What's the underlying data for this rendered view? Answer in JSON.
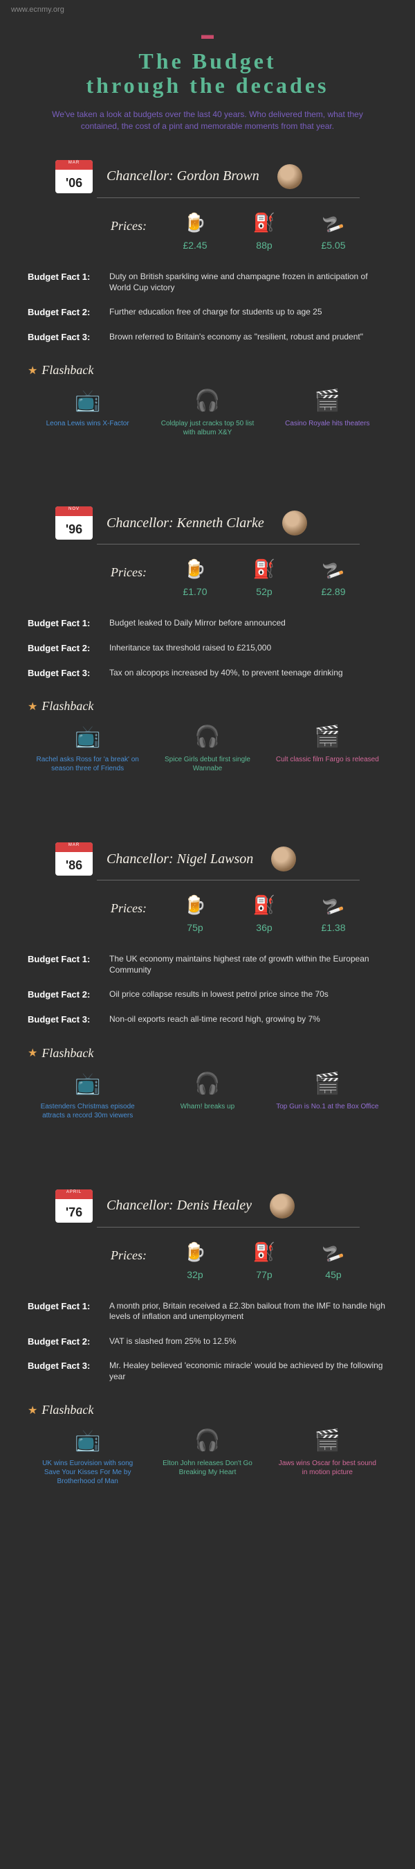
{
  "site_url": "www.ecnmy.org",
  "title_line1": "The Budget",
  "title_line2": "through the decades",
  "intro": "We've taken a look at budgets over the last 40 years. Who delivered them, what they contained, the cost of a pint and memorable moments from that year.",
  "prices_label": "Prices:",
  "flashback_label": "Flashback",
  "fact_label_prefix": "Budget Fact",
  "decades": [
    {
      "month": "MAR",
      "year": "'06",
      "chancellor": "Chancellor: Gordon Brown",
      "prices": {
        "beer": "£2.45",
        "fuel": "88p",
        "cig": "£5.05"
      },
      "facts": [
        "Duty on British sparkling wine and champagne frozen in anticipation of World Cup victory",
        "Further education free of charge for students up to age 25",
        "Brown referred to Britain's economy as \"resilient, robust and prudent\""
      ],
      "flashback": [
        {
          "type": "tv",
          "color": "blue",
          "text": "Leona Lewis wins X-Factor"
        },
        {
          "type": "music",
          "color": "teal",
          "text": "Coldplay just cracks top 50 list with album X&Y"
        },
        {
          "type": "film",
          "color": "purple",
          "text": "Casino Royale hits theaters"
        }
      ]
    },
    {
      "month": "NOV",
      "year": "'96",
      "chancellor": "Chancellor: Kenneth Clarke",
      "prices": {
        "beer": "£1.70",
        "fuel": "52p",
        "cig": "£2.89"
      },
      "facts": [
        "Budget leaked to Daily Mirror before announced",
        "Inheritance tax threshold raised to £215,000",
        "Tax on alcopops increased by 40%, to prevent teenage drinking"
      ],
      "flashback": [
        {
          "type": "tv",
          "color": "blue",
          "text": "Rachel asks Ross for 'a break' on season three of Friends"
        },
        {
          "type": "music",
          "color": "teal",
          "text": "Spice Girls debut first single Wannabe"
        },
        {
          "type": "film",
          "color": "pink",
          "text": "Cult classic film Fargo is released"
        }
      ]
    },
    {
      "month": "MAR",
      "year": "'86",
      "chancellor": "Chancellor: Nigel Lawson",
      "prices": {
        "beer": "75p",
        "fuel": "36p",
        "cig": "£1.38"
      },
      "facts": [
        "The UK economy maintains highest rate of growth within the European Community",
        "Oil price collapse results in lowest petrol price since the 70s",
        "Non-oil exports reach all-time record high, growing by 7%"
      ],
      "flashback": [
        {
          "type": "tv",
          "color": "blue",
          "text": "Eastenders Christmas episode attracts a record 30m viewers"
        },
        {
          "type": "music",
          "color": "teal",
          "text": "Wham! breaks up"
        },
        {
          "type": "film",
          "color": "purple",
          "text": "Top Gun is No.1 at the Box Office"
        }
      ]
    },
    {
      "month": "APRIL",
      "year": "'76",
      "chancellor": "Chancellor: Denis Healey",
      "prices": {
        "beer": "32p",
        "fuel": "77p",
        "cig": "45p"
      },
      "facts": [
        "A month prior, Britain received a £2.3bn bailout from the IMF to handle high levels of inflation and unemployment",
        "VAT is slashed from 25% to 12.5%",
        "Mr. Healey believed 'economic miracle' would be achieved by the following year"
      ],
      "flashback": [
        {
          "type": "tv",
          "color": "blue",
          "text": "UK wins Eurovision with song Save Your Kisses For Me by Brotherhood of Man"
        },
        {
          "type": "music",
          "color": "teal",
          "text": "Elton John releases Don't Go Breaking My Heart"
        },
        {
          "type": "film",
          "color": "pink",
          "text": "Jaws wins Oscar for best sound in motion picture"
        }
      ]
    }
  ]
}
